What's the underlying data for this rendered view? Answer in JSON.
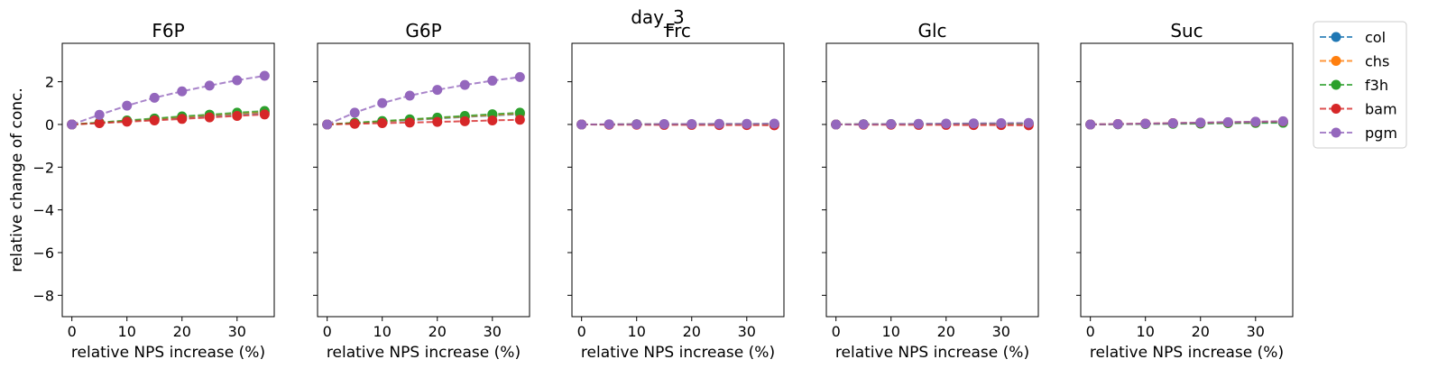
{
  "figure": {
    "suptitle": "day_3"
  },
  "legend": {
    "location": "upper-right-outside"
  },
  "chart_data": [
    {
      "type": "line",
      "title": "F6P",
      "xlabel": "relative NPS increase (%)",
      "ylabel": "relative change of conc.",
      "xlim": [
        -1.75,
        36.75
      ],
      "ylim": [
        -9,
        3.8
      ],
      "xticks": [
        0,
        10,
        20,
        30
      ],
      "yticks": [
        -8,
        -6,
        -4,
        -2,
        0,
        2
      ],
      "x": [
        0,
        5,
        10,
        15,
        20,
        25,
        30,
        35
      ],
      "series": [
        {
          "name": "col",
          "color": "#1f77b4",
          "values": [
            0,
            0.07,
            0.16,
            0.24,
            0.32,
            0.4,
            0.47,
            0.54
          ]
        },
        {
          "name": "chs",
          "color": "#ff7f0e",
          "values": [
            0,
            0.08,
            0.17,
            0.26,
            0.35,
            0.43,
            0.51,
            0.58
          ]
        },
        {
          "name": "f3h",
          "color": "#2ca02c",
          "values": [
            0,
            0.09,
            0.19,
            0.28,
            0.38,
            0.46,
            0.55,
            0.63
          ]
        },
        {
          "name": "bam",
          "color": "#d62728",
          "values": [
            0,
            0.06,
            0.13,
            0.19,
            0.26,
            0.33,
            0.4,
            0.47
          ]
        },
        {
          "name": "pgm",
          "color": "#9467bd",
          "values": [
            0,
            0.45,
            0.88,
            1.25,
            1.55,
            1.82,
            2.07,
            2.28
          ]
        }
      ]
    },
    {
      "type": "line",
      "title": "G6P",
      "xlabel": "relative NPS increase (%)",
      "ylabel": "",
      "xlim": [
        -1.75,
        36.75
      ],
      "ylim": [
        -9,
        3.8
      ],
      "xticks": [
        0,
        10,
        20,
        30
      ],
      "yticks": [
        -8,
        -6,
        -4,
        -2,
        0,
        2
      ],
      "x": [
        0,
        5,
        10,
        15,
        20,
        25,
        30,
        35
      ],
      "series": [
        {
          "name": "col",
          "color": "#1f77b4",
          "values": [
            0,
            0.06,
            0.13,
            0.2,
            0.28,
            0.35,
            0.42,
            0.48
          ]
        },
        {
          "name": "chs",
          "color": "#ff7f0e",
          "values": [
            0,
            0.07,
            0.14,
            0.22,
            0.3,
            0.37,
            0.44,
            0.51
          ]
        },
        {
          "name": "f3h",
          "color": "#2ca02c",
          "values": [
            0,
            0.08,
            0.16,
            0.24,
            0.32,
            0.4,
            0.48,
            0.55
          ]
        },
        {
          "name": "bam",
          "color": "#d62728",
          "values": [
            0,
            0.03,
            0.06,
            0.09,
            0.12,
            0.15,
            0.19,
            0.22
          ]
        },
        {
          "name": "pgm",
          "color": "#9467bd",
          "values": [
            0,
            0.55,
            1.0,
            1.35,
            1.62,
            1.85,
            2.05,
            2.22
          ]
        }
      ]
    },
    {
      "type": "line",
      "title": "Frc",
      "xlabel": "relative NPS increase (%)",
      "ylabel": "",
      "xlim": [
        -1.75,
        36.75
      ],
      "ylim": [
        -9,
        3.8
      ],
      "xticks": [
        0,
        10,
        20,
        30
      ],
      "yticks": [
        -8,
        -6,
        -4,
        -2,
        0,
        2
      ],
      "x": [
        0,
        5,
        10,
        15,
        20,
        25,
        30,
        35
      ],
      "series": [
        {
          "name": "col",
          "color": "#1f77b4",
          "values": [
            0,
            0.0,
            0.01,
            0.01,
            0.01,
            0.02,
            0.02,
            0.02
          ]
        },
        {
          "name": "chs",
          "color": "#ff7f0e",
          "values": [
            0,
            0.0,
            0.01,
            0.01,
            0.01,
            0.02,
            0.02,
            0.02
          ]
        },
        {
          "name": "f3h",
          "color": "#2ca02c",
          "values": [
            0,
            0.0,
            0.01,
            0.01,
            0.01,
            0.02,
            0.02,
            0.02
          ]
        },
        {
          "name": "bam",
          "color": "#d62728",
          "values": [
            0,
            -0.01,
            -0.01,
            -0.02,
            -0.02,
            -0.03,
            -0.03,
            -0.04
          ]
        },
        {
          "name": "pgm",
          "color": "#9467bd",
          "values": [
            0,
            0.01,
            0.01,
            0.02,
            0.02,
            0.03,
            0.03,
            0.04
          ]
        }
      ]
    },
    {
      "type": "line",
      "title": "Glc",
      "xlabel": "relative NPS increase (%)",
      "ylabel": "",
      "xlim": [
        -1.75,
        36.75
      ],
      "ylim": [
        -9,
        3.8
      ],
      "xticks": [
        0,
        10,
        20,
        30
      ],
      "yticks": [
        -8,
        -6,
        -4,
        -2,
        0,
        2
      ],
      "x": [
        0,
        5,
        10,
        15,
        20,
        25,
        30,
        35
      ],
      "series": [
        {
          "name": "col",
          "color": "#1f77b4",
          "values": [
            0,
            0.01,
            0.01,
            0.02,
            0.02,
            0.03,
            0.03,
            0.04
          ]
        },
        {
          "name": "chs",
          "color": "#ff7f0e",
          "values": [
            0,
            0.01,
            0.01,
            0.02,
            0.02,
            0.03,
            0.03,
            0.04
          ]
        },
        {
          "name": "f3h",
          "color": "#2ca02c",
          "values": [
            0,
            0.01,
            0.02,
            0.02,
            0.03,
            0.04,
            0.04,
            0.05
          ]
        },
        {
          "name": "bam",
          "color": "#d62728",
          "values": [
            0,
            -0.01,
            -0.01,
            -0.02,
            -0.02,
            -0.03,
            -0.03,
            -0.04
          ]
        },
        {
          "name": "pgm",
          "color": "#9467bd",
          "values": [
            0,
            0.01,
            0.02,
            0.03,
            0.04,
            0.05,
            0.06,
            0.07
          ]
        }
      ]
    },
    {
      "type": "line",
      "title": "Suc",
      "xlabel": "relative NPS increase (%)",
      "ylabel": "",
      "xlim": [
        -1.75,
        36.75
      ],
      "ylim": [
        -9,
        3.8
      ],
      "xticks": [
        0,
        10,
        20,
        30
      ],
      "yticks": [
        -8,
        -6,
        -4,
        -2,
        0,
        2
      ],
      "x": [
        0,
        5,
        10,
        15,
        20,
        25,
        30,
        35
      ],
      "series": [
        {
          "name": "col",
          "color": "#1f77b4",
          "values": [
            0,
            0.01,
            0.03,
            0.04,
            0.05,
            0.07,
            0.08,
            0.09
          ]
        },
        {
          "name": "chs",
          "color": "#ff7f0e",
          "values": [
            0,
            0.02,
            0.04,
            0.06,
            0.08,
            0.1,
            0.12,
            0.14
          ]
        },
        {
          "name": "f3h",
          "color": "#2ca02c",
          "values": [
            0,
            0.01,
            0.02,
            0.03,
            0.04,
            0.06,
            0.07,
            0.08
          ]
        },
        {
          "name": "bam",
          "color": "#d62728",
          "values": [
            0,
            0.02,
            0.04,
            0.06,
            0.08,
            0.1,
            0.12,
            0.14
          ]
        },
        {
          "name": "pgm",
          "color": "#9467bd",
          "values": [
            0,
            0.02,
            0.04,
            0.06,
            0.09,
            0.11,
            0.13,
            0.15
          ]
        }
      ]
    }
  ]
}
